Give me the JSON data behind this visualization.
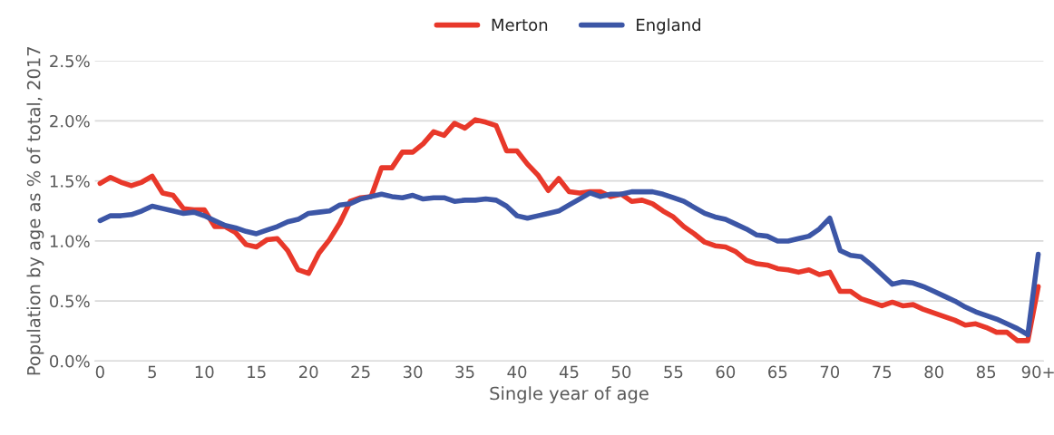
{
  "chart_data": {
    "type": "line",
    "xlabel": "Single year of age",
    "ylabel": "Population by age as % of total, 2017",
    "categories": [
      "0",
      null,
      null,
      null,
      null,
      "5",
      null,
      null,
      null,
      null,
      "10",
      null,
      null,
      null,
      null,
      "15",
      null,
      null,
      null,
      null,
      "20",
      null,
      null,
      null,
      null,
      "25",
      null,
      null,
      null,
      null,
      "30",
      null,
      null,
      null,
      null,
      "35",
      null,
      null,
      null,
      null,
      "40",
      null,
      null,
      null,
      null,
      "45",
      null,
      null,
      null,
      null,
      "50",
      null,
      null,
      null,
      null,
      "55",
      null,
      null,
      null,
      null,
      "60",
      null,
      null,
      null,
      null,
      "65",
      null,
      null,
      null,
      null,
      "70",
      null,
      null,
      null,
      null,
      "75",
      null,
      null,
      null,
      null,
      "80",
      null,
      null,
      null,
      null,
      "85",
      null,
      null,
      null,
      null,
      "90+"
    ],
    "series": [
      {
        "name": "Merton",
        "color": "#e8382a",
        "values": [
          1.48,
          1.53,
          1.49,
          1.46,
          1.49,
          1.54,
          1.4,
          1.38,
          1.27,
          1.26,
          1.26,
          1.12,
          1.12,
          1.07,
          0.97,
          0.95,
          1.01,
          1.02,
          0.92,
          0.76,
          0.73,
          0.9,
          1.01,
          1.15,
          1.33,
          1.36,
          1.37,
          1.61,
          1.61,
          1.74,
          1.74,
          1.81,
          1.91,
          1.88,
          1.98,
          1.94,
          2.01,
          1.99,
          1.96,
          1.75,
          1.75,
          1.64,
          1.55,
          1.42,
          1.52,
          1.41,
          1.4,
          1.41,
          1.41,
          1.37,
          1.39,
          1.33,
          1.34,
          1.31,
          1.25,
          1.2,
          1.12,
          1.06,
          0.99,
          0.96,
          0.95,
          0.91,
          0.84,
          0.81,
          0.8,
          0.77,
          0.76,
          0.74,
          0.76,
          0.72,
          0.74,
          0.58,
          0.58,
          0.52,
          0.49,
          0.46,
          0.49,
          0.46,
          0.47,
          0.43,
          0.4,
          0.37,
          0.34,
          0.3,
          0.31,
          0.28,
          0.24,
          0.24,
          0.17,
          0.17,
          0.62
        ]
      },
      {
        "name": "England",
        "color": "#3c56a6",
        "values": [
          1.17,
          1.21,
          1.21,
          1.22,
          1.25,
          1.29,
          1.27,
          1.25,
          1.23,
          1.24,
          1.21,
          1.17,
          1.13,
          1.11,
          1.08,
          1.06,
          1.09,
          1.12,
          1.16,
          1.18,
          1.23,
          1.24,
          1.25,
          1.3,
          1.31,
          1.35,
          1.37,
          1.39,
          1.37,
          1.36,
          1.38,
          1.35,
          1.36,
          1.36,
          1.33,
          1.34,
          1.34,
          1.35,
          1.34,
          1.29,
          1.21,
          1.19,
          1.21,
          1.23,
          1.25,
          1.3,
          1.35,
          1.4,
          1.37,
          1.39,
          1.39,
          1.41,
          1.41,
          1.41,
          1.39,
          1.36,
          1.33,
          1.28,
          1.23,
          1.2,
          1.18,
          1.14,
          1.1,
          1.05,
          1.04,
          1.0,
          1.0,
          1.02,
          1.04,
          1.1,
          1.19,
          0.92,
          0.88,
          0.87,
          0.8,
          0.72,
          0.64,
          0.66,
          0.65,
          0.62,
          0.58,
          0.54,
          0.5,
          0.45,
          0.41,
          0.38,
          0.35,
          0.31,
          0.27,
          0.22,
          0.89
        ]
      }
    ],
    "ylim": [
      0,
      2.5
    ],
    "yticks": [
      {
        "value": 0,
        "label": "0.0%"
      },
      {
        "value": 0.5,
        "label": "0.5%"
      },
      {
        "value": 1.0,
        "label": "1.0%"
      },
      {
        "value": 1.5,
        "label": "1.5%"
      },
      {
        "value": 2.0,
        "label": "2.0%"
      },
      {
        "value": 2.5,
        "label": "2.5%"
      }
    ],
    "grid": "y",
    "legend": "top",
    "marker": "none",
    "line_style": "solid"
  }
}
